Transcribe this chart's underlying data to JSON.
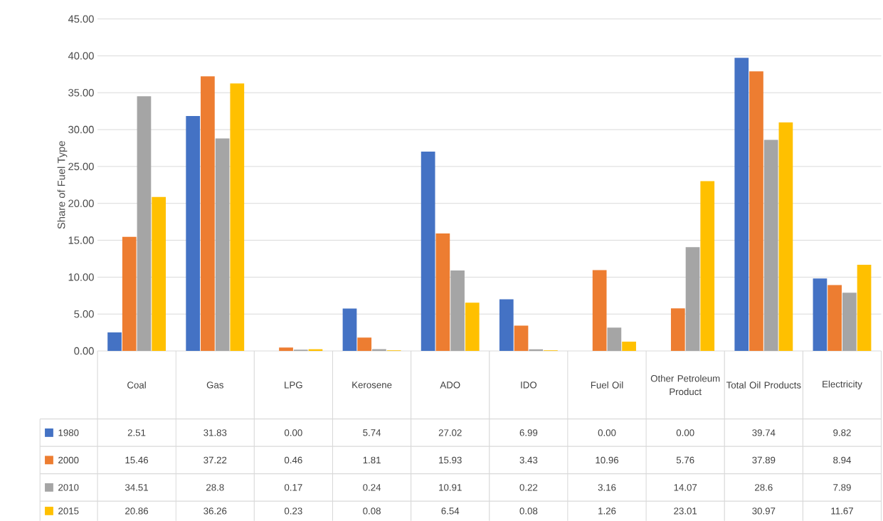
{
  "chart_data": {
    "type": "bar",
    "ylabel": "Share of Fuel Type",
    "categories": [
      "Coal",
      "Gas",
      "LPG",
      "Kerosene",
      "ADO",
      "IDO",
      "Fuel Oil",
      "Other Petroleum Product",
      "Total Oil Products",
      "Electricity"
    ],
    "series": [
      {
        "name": "1980",
        "color": "#4472c4",
        "values": [
          2.51,
          31.83,
          0.0,
          5.74,
          27.02,
          6.99,
          0.0,
          0.0,
          39.74,
          9.82
        ],
        "value_labels": [
          "2.51",
          "31.83",
          "0.00",
          "5.74",
          "27.02",
          "6.99",
          "0.00",
          "0.00",
          "39.74",
          "9.82"
        ]
      },
      {
        "name": "2000",
        "color": "#ed7d31",
        "values": [
          15.46,
          37.22,
          0.46,
          1.81,
          15.93,
          3.43,
          10.96,
          5.76,
          37.89,
          8.94
        ],
        "value_labels": [
          "15.46",
          "37.22",
          "0.46",
          "1.81",
          "15.93",
          "3.43",
          "10.96",
          "5.76",
          "37.89",
          "8.94"
        ]
      },
      {
        "name": "2010",
        "color": "#a5a5a5",
        "values": [
          34.51,
          28.8,
          0.17,
          0.24,
          10.91,
          0.22,
          3.16,
          14.07,
          28.6,
          7.89
        ],
        "value_labels": [
          "34.51",
          "28.8",
          "0.17",
          "0.24",
          "10.91",
          "0.22",
          "3.16",
          "14.07",
          "28.6",
          "7.89"
        ]
      },
      {
        "name": "2015",
        "color": "#ffc000",
        "values": [
          20.86,
          36.26,
          0.23,
          0.08,
          6.54,
          0.08,
          1.26,
          23.01,
          30.97,
          11.67
        ],
        "value_labels": [
          "20.86",
          "36.26",
          "0.23",
          "0.08",
          "6.54",
          "0.08",
          "1.26",
          "23.01",
          "30.97",
          "11.67"
        ]
      }
    ],
    "ylim": [
      0,
      45
    ],
    "yticks": [
      {
        "value": 0,
        "label": "0.00"
      },
      {
        "value": 5,
        "label": "5.00"
      },
      {
        "value": 10,
        "label": "10.00"
      },
      {
        "value": 15,
        "label": "15.00"
      },
      {
        "value": 20,
        "label": "20.00"
      },
      {
        "value": 25,
        "label": "25.00"
      },
      {
        "value": 30,
        "label": "30.00"
      },
      {
        "value": 35,
        "label": "35.00"
      },
      {
        "value": 40,
        "label": "40.00"
      },
      {
        "value": 45,
        "label": "45.00"
      }
    ],
    "grid": "y",
    "legend": "bottom"
  }
}
